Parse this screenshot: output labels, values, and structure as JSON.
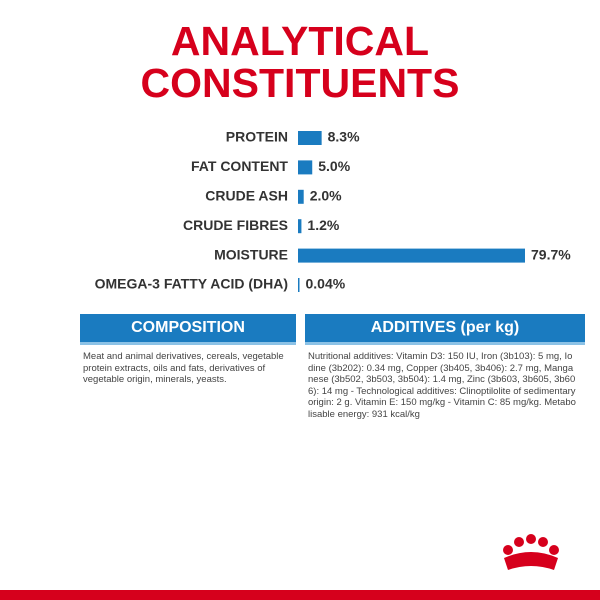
{
  "chart_data": {
    "type": "hbar",
    "title": "ANALYTICAL CONSTITUENTS",
    "categories": [
      "PROTEIN",
      "FAT CONTENT",
      "CRUDE ASH",
      "CRUDE FIBRES",
      "MOISTURE",
      "OMEGA-3 FATTY ACID (DHA)"
    ],
    "values": [
      8.3,
      5.0,
      2.0,
      1.2,
      79.7,
      0.04
    ],
    "value_labels": [
      "8.3%",
      "5.0%",
      "2.0%",
      "1.2%",
      "79.7%",
      "0.04%"
    ],
    "color": "#1a7bc0"
  },
  "composition": {
    "title": "COMPOSITION",
    "text": "Meat and animal derivatives, cereals, vegetable protein extracts, oils and fats, derivatives of vegetable origin, minerals, yeasts."
  },
  "additives": {
    "title": "ADDITIVES (per kg)",
    "text": "Nutritional additives: Vitamin D3: 150 IU, Iron (3b103): 5 mg, Iodine (3b202): 0.34 mg, Copper (3b405, 3b406): 2.7 mg, Manganese (3b502, 3b503, 3b504): 1.4 mg, Zinc (3b603, 3b605, 3b606): 14 mg - Technological additives: Clinoptilolite of sedimentary origin: 2 g. Vitamin E: 150 mg/kg - Vitamin C: 85 mg/kg. Metabolisable energy: 931 kcal/kg"
  }
}
